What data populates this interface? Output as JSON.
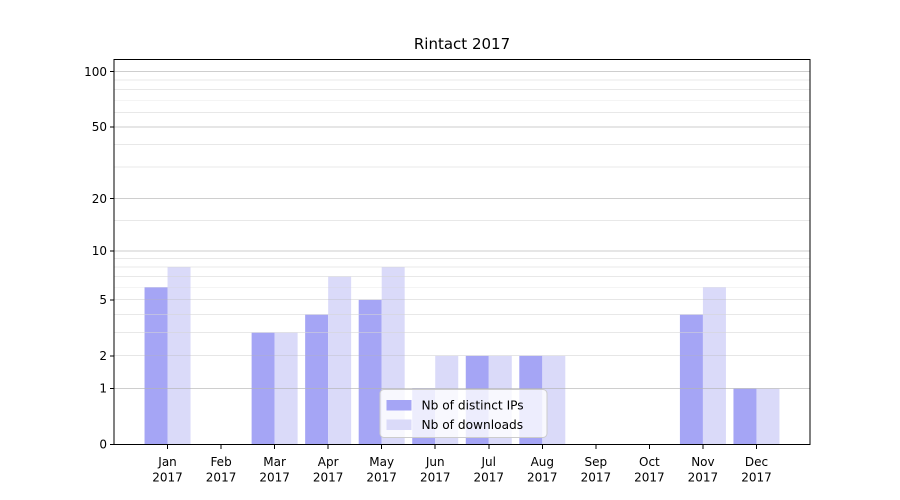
{
  "figure": {
    "title": "Rintact 2017",
    "background": "#ffffff"
  },
  "chart_data": {
    "type": "bar",
    "title": "Rintact 2017",
    "xlabel": "",
    "ylabel": "",
    "categories": [
      "Jan 2017",
      "Feb 2017",
      "Mar 2017",
      "Apr 2017",
      "May 2017",
      "Jun 2017",
      "Jul 2017",
      "Aug 2017",
      "Sep 2017",
      "Oct 2017",
      "Nov 2017",
      "Dec 2017"
    ],
    "series": [
      {
        "name": "Nb of distinct IPs",
        "color": "#a5a5f5",
        "values": [
          6,
          0,
          3,
          4,
          5,
          1,
          2,
          2,
          0,
          0,
          4,
          1
        ]
      },
      {
        "name": "Nb of downloads",
        "color": "#dadaf9",
        "values": [
          8,
          0,
          3,
          7,
          8,
          2,
          2,
          2,
          0,
          0,
          6,
          1
        ]
      }
    ],
    "y_axis": {
      "scale": "log10(1+v)",
      "ticks": [
        0,
        1,
        2,
        5,
        10,
        20,
        50,
        100
      ],
      "minor_gridlines": [
        3,
        4,
        6,
        7,
        8,
        9,
        15,
        30,
        40,
        60,
        70,
        80,
        90
      ],
      "range": [
        0,
        116
      ]
    },
    "grid": "on",
    "legend": {
      "position": "lower-center-inside",
      "entries": [
        "Nb of distinct IPs",
        "Nb of downloads"
      ]
    }
  },
  "colors": {
    "background": "#ffffff",
    "spine": "#000000",
    "grid_major": "#b3b3b3",
    "grid_minor": "#d6d6d6",
    "legend_border": "#cccccc",
    "legend_fill": "#ffffff",
    "text": "#000000"
  }
}
